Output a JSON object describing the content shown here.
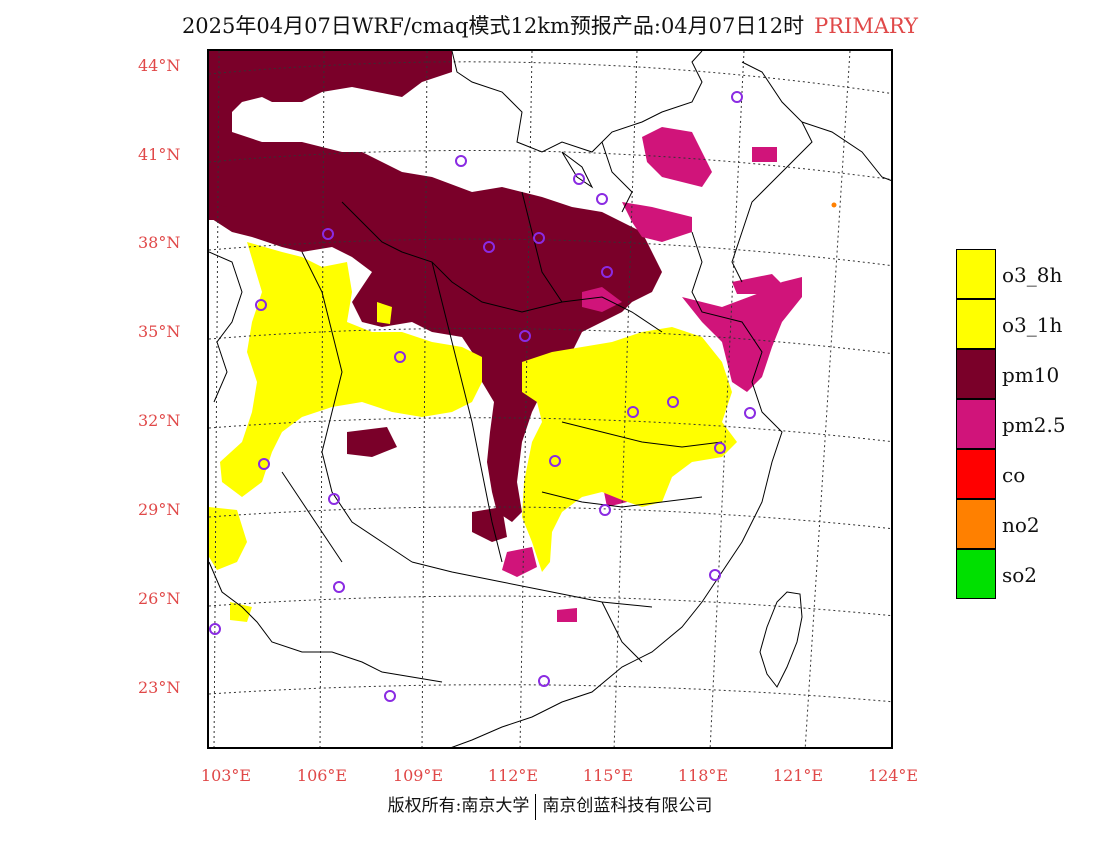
{
  "title": {
    "main": "2025年04月07日WRF/cmaq模式12km预报产品:04月07日12时",
    "tag": "PRIMARY"
  },
  "axes": {
    "latitudes": [
      "44°N",
      "41°N",
      "38°N",
      "35°N",
      "32°N",
      "29°N",
      "26°N",
      "23°N"
    ],
    "longitudes": [
      "103°E",
      "106°E",
      "109°E",
      "112°E",
      "115°E",
      "118°E",
      "121°E",
      "124°E"
    ]
  },
  "legend": [
    {
      "label": "o3_8h",
      "color": "#ffff00"
    },
    {
      "label": "o3_1h",
      "color": "#ffff00"
    },
    {
      "label": "pm10",
      "color": "#7a0029"
    },
    {
      "label": "pm2.5",
      "color": "#d0147a"
    },
    {
      "label": "co",
      "color": "#ff0000"
    },
    {
      "label": "no2",
      "color": "#ff8000"
    },
    {
      "label": "so2",
      "color": "#00e000"
    }
  ],
  "footer": {
    "left": "版权所有:南京大学",
    "right": "南京创蓝科技有限公司"
  },
  "map_colors": {
    "pm10": "#7a0029",
    "pm25": "#d0147a",
    "o3": "#ffff00",
    "station_marker": "#8a2be2",
    "gridline": "#333333",
    "boundary": "#000000"
  }
}
